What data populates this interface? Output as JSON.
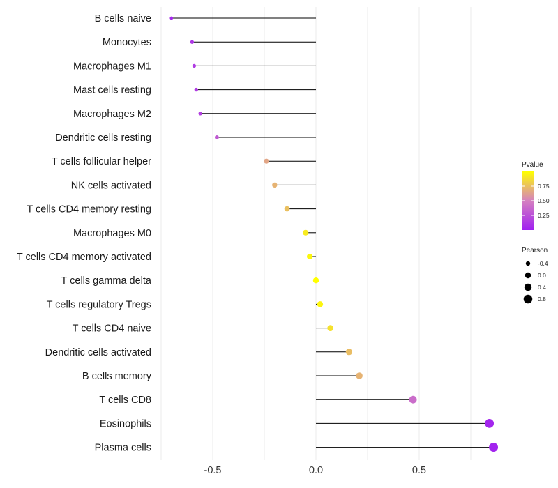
{
  "chart_data": {
    "type": "lollipop",
    "title": "",
    "xlabel": "",
    "ylabel": "",
    "xlim": [
      -0.75,
      0.9
    ],
    "x_ticks": [
      -0.5,
      0.0,
      0.5
    ],
    "x_tick_labels": [
      "-0.5",
      "0.0",
      "0.5"
    ],
    "grid": true,
    "categories": [
      "B cells naive",
      "Monocytes",
      "Macrophages M1",
      "Mast cells resting",
      "Macrophages M2",
      "Dendritic cells resting",
      "T cells follicular helper",
      "NK cells activated",
      "T cells CD4 memory resting",
      "Macrophages M0",
      "T cells CD4 memory activated",
      "T cells gamma delta",
      "T cells regulatory  Tregs ",
      "T cells CD4 naive",
      "Dendritic cells activated",
      "B cells memory",
      "T cells CD8",
      "Eosinophils",
      "Plasma cells"
    ],
    "pearson": [
      -0.7,
      -0.6,
      -0.59,
      -0.58,
      -0.56,
      -0.48,
      -0.24,
      -0.2,
      -0.14,
      -0.05,
      -0.03,
      0.0,
      0.02,
      0.07,
      0.16,
      0.21,
      0.47,
      0.84,
      0.86
    ],
    "pvalue": [
      0.05,
      0.12,
      0.14,
      0.15,
      0.17,
      0.3,
      0.65,
      0.7,
      0.75,
      0.92,
      0.97,
      1.0,
      0.96,
      0.88,
      0.74,
      0.7,
      0.4,
      0.03,
      0.02
    ],
    "legend_color": {
      "title": "Pvalue",
      "position": "right",
      "range": [
        0.0,
        1.0
      ],
      "ticks": [
        0.25,
        0.5,
        0.75
      ],
      "tick_labels": [
        "0.25",
        "0.50",
        "0.75"
      ],
      "low_color": "#a020f0",
      "mid_color": "#d580c0",
      "high_color": "#ffff00"
    },
    "legend_size": {
      "title": "Pearson",
      "position": "right",
      "values": [
        -0.4,
        0.0,
        0.4,
        0.8
      ],
      "labels": [
        "-0.4",
        "0.0",
        "0.4",
        "0.8"
      ]
    }
  },
  "colors": {
    "segment": "#000000",
    "grid": "#ebebeb",
    "legend_dot": "#000000"
  }
}
